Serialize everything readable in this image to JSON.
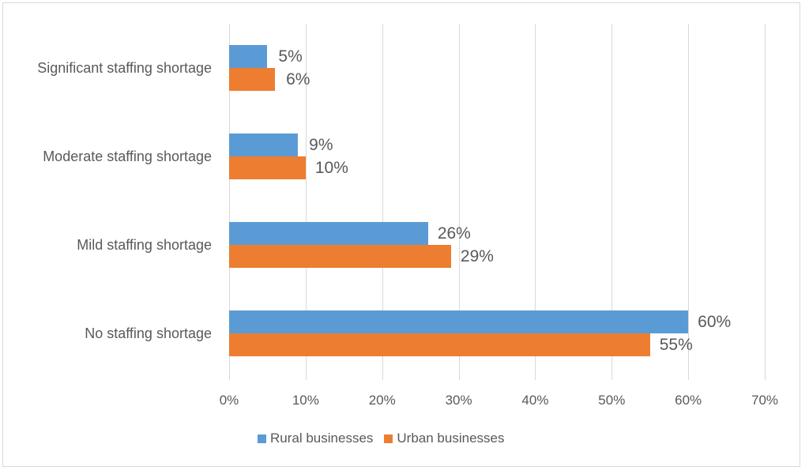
{
  "chart_data": {
    "type": "bar",
    "orientation": "horizontal",
    "title": "",
    "xlabel": "",
    "ylabel": "",
    "categories": [
      "No staffing shortage",
      "Mild staffing shortage",
      "Moderate staffing shortage",
      "Significant staffing shortage"
    ],
    "series": [
      {
        "name": "Rural businesses",
        "color": "#5b9bd5",
        "values": [
          60,
          26,
          9,
          5
        ],
        "labels": [
          "60%",
          "26%",
          "9%",
          "5%"
        ]
      },
      {
        "name": "Urban businesses",
        "color": "#ed7d31",
        "values": [
          55,
          29,
          10,
          6
        ],
        "labels": [
          "55%",
          "29%",
          "10%",
          "6%"
        ]
      }
    ],
    "xlim": [
      0,
      70
    ],
    "x_ticks": [
      "0%",
      "10%",
      "20%",
      "30%",
      "40%",
      "50%",
      "60%",
      "70%"
    ],
    "grid": true,
    "legend_position": "bottom"
  }
}
